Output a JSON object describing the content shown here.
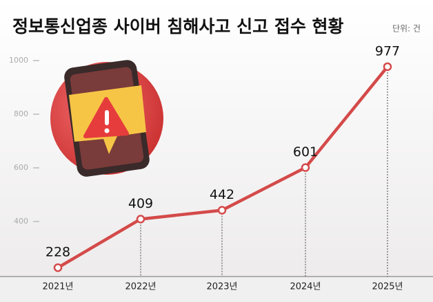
{
  "chart_data": {
    "type": "line",
    "title": "정보통신업종 사이버 침해사고 신고 접수 현황",
    "unit": "단위: 건",
    "categories": [
      "2021년",
      "2022년",
      "2023년",
      "2024년",
      "2025년"
    ],
    "series": [
      {
        "name": "신고 접수",
        "color": "#d44a4a",
        "values": [
          228,
          409,
          442,
          601,
          977
        ]
      }
    ],
    "ylim": [
      200,
      1000
    ],
    "yticks": [
      400,
      600,
      800,
      1000
    ]
  }
}
